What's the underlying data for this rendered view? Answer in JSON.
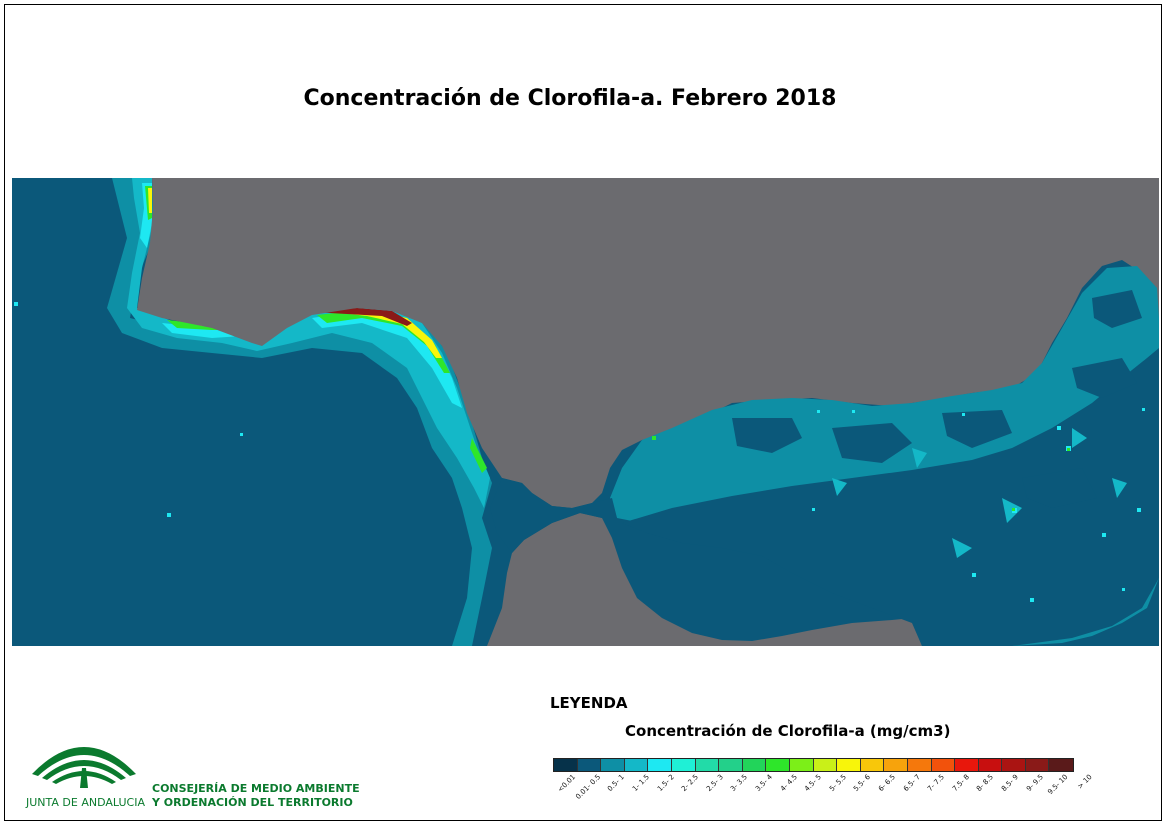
{
  "title": "Concentración de Clorofila-a. Febrero 2018",
  "legend": {
    "heading": "LEYENDA",
    "subtitle": "Concentración de Clorofila-a (mg/cm3)",
    "classes": [
      {
        "label": "<0.01",
        "color": "#06324a"
      },
      {
        "label": "0.01- 0.5",
        "color": "#0b587a"
      },
      {
        "label": "0.5- 1",
        "color": "#0e8fa5"
      },
      {
        "label": "1- 1.5",
        "color": "#14b8c8"
      },
      {
        "label": "1.5- 2",
        "color": "#1ee8f2"
      },
      {
        "label": "2- 2.5",
        "color": "#1ff0d6"
      },
      {
        "label": "2.5- 3",
        "color": "#22dba8"
      },
      {
        "label": "3- 3.5",
        "color": "#23d08a"
      },
      {
        "label": "3.5- 4",
        "color": "#22d45a"
      },
      {
        "label": "4- 4.5",
        "color": "#2ee62a"
      },
      {
        "label": "4.5- 5",
        "color": "#7cef18"
      },
      {
        "label": "5- 5.5",
        "color": "#c9f018"
      },
      {
        "label": "5.5- 6",
        "color": "#f8f50a"
      },
      {
        "label": "6- 6.5",
        "color": "#f8c70a"
      },
      {
        "label": "6.5- 7",
        "color": "#f7a30c"
      },
      {
        "label": "7- 7.5",
        "color": "#f5780c"
      },
      {
        "label": "7.5- 8",
        "color": "#f2520c"
      },
      {
        "label": "8- 8.5",
        "color": "#e8170c"
      },
      {
        "label": "8.5- 9",
        "color": "#c80f0f"
      },
      {
        "label": "9- 9.5",
        "color": "#aa1412"
      },
      {
        "label": "9.5- 10",
        "color": "#8a1a18"
      },
      {
        "label": "> 10",
        "color": "#5a1a1a"
      }
    ]
  },
  "logo": {
    "text": "JUNTA DE ANDALUCIA",
    "department_line1": "CONSEJERÍA DE MEDIO AMBIENTE",
    "department_line2": "Y ORDENACIÓN DEL TERRITORIO"
  },
  "colors": {
    "sea_base": "#0b587a",
    "land": "#6b6b6f",
    "brand_green": "#0b7a2e"
  }
}
